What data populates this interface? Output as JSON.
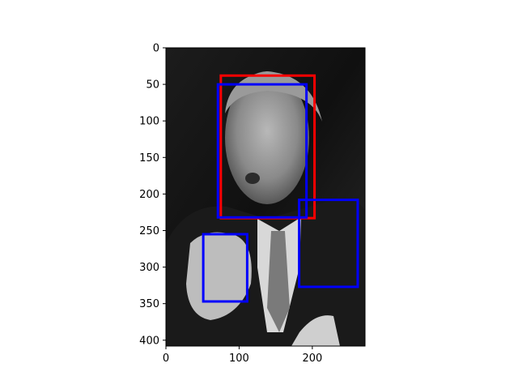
{
  "chart_data": {
    "type": "scatter",
    "content": "grayscale photograph with overlaid bounding boxes",
    "title": "",
    "xlabel": "",
    "ylabel": "",
    "xlim": [
      0,
      272
    ],
    "ylim": [
      408,
      0
    ],
    "y_axis_inverted": true,
    "grid": false,
    "x_ticks": [
      0,
      100,
      200
    ],
    "y_ticks": [
      0,
      50,
      100,
      150,
      200,
      250,
      300,
      350,
      400
    ],
    "boxes": [
      {
        "color": "#ff0000",
        "x0": 75,
        "y0": 38,
        "x1": 203,
        "y1": 233
      },
      {
        "color": "#0000ff",
        "x0": 71,
        "y0": 50,
        "x1": 192,
        "y1": 232
      },
      {
        "color": "#0000ff",
        "x0": 51,
        "y0": 255,
        "x1": 111,
        "y1": 347
      },
      {
        "color": "#0000ff",
        "x0": 182,
        "y0": 208,
        "x1": 262,
        "y1": 327
      }
    ]
  }
}
